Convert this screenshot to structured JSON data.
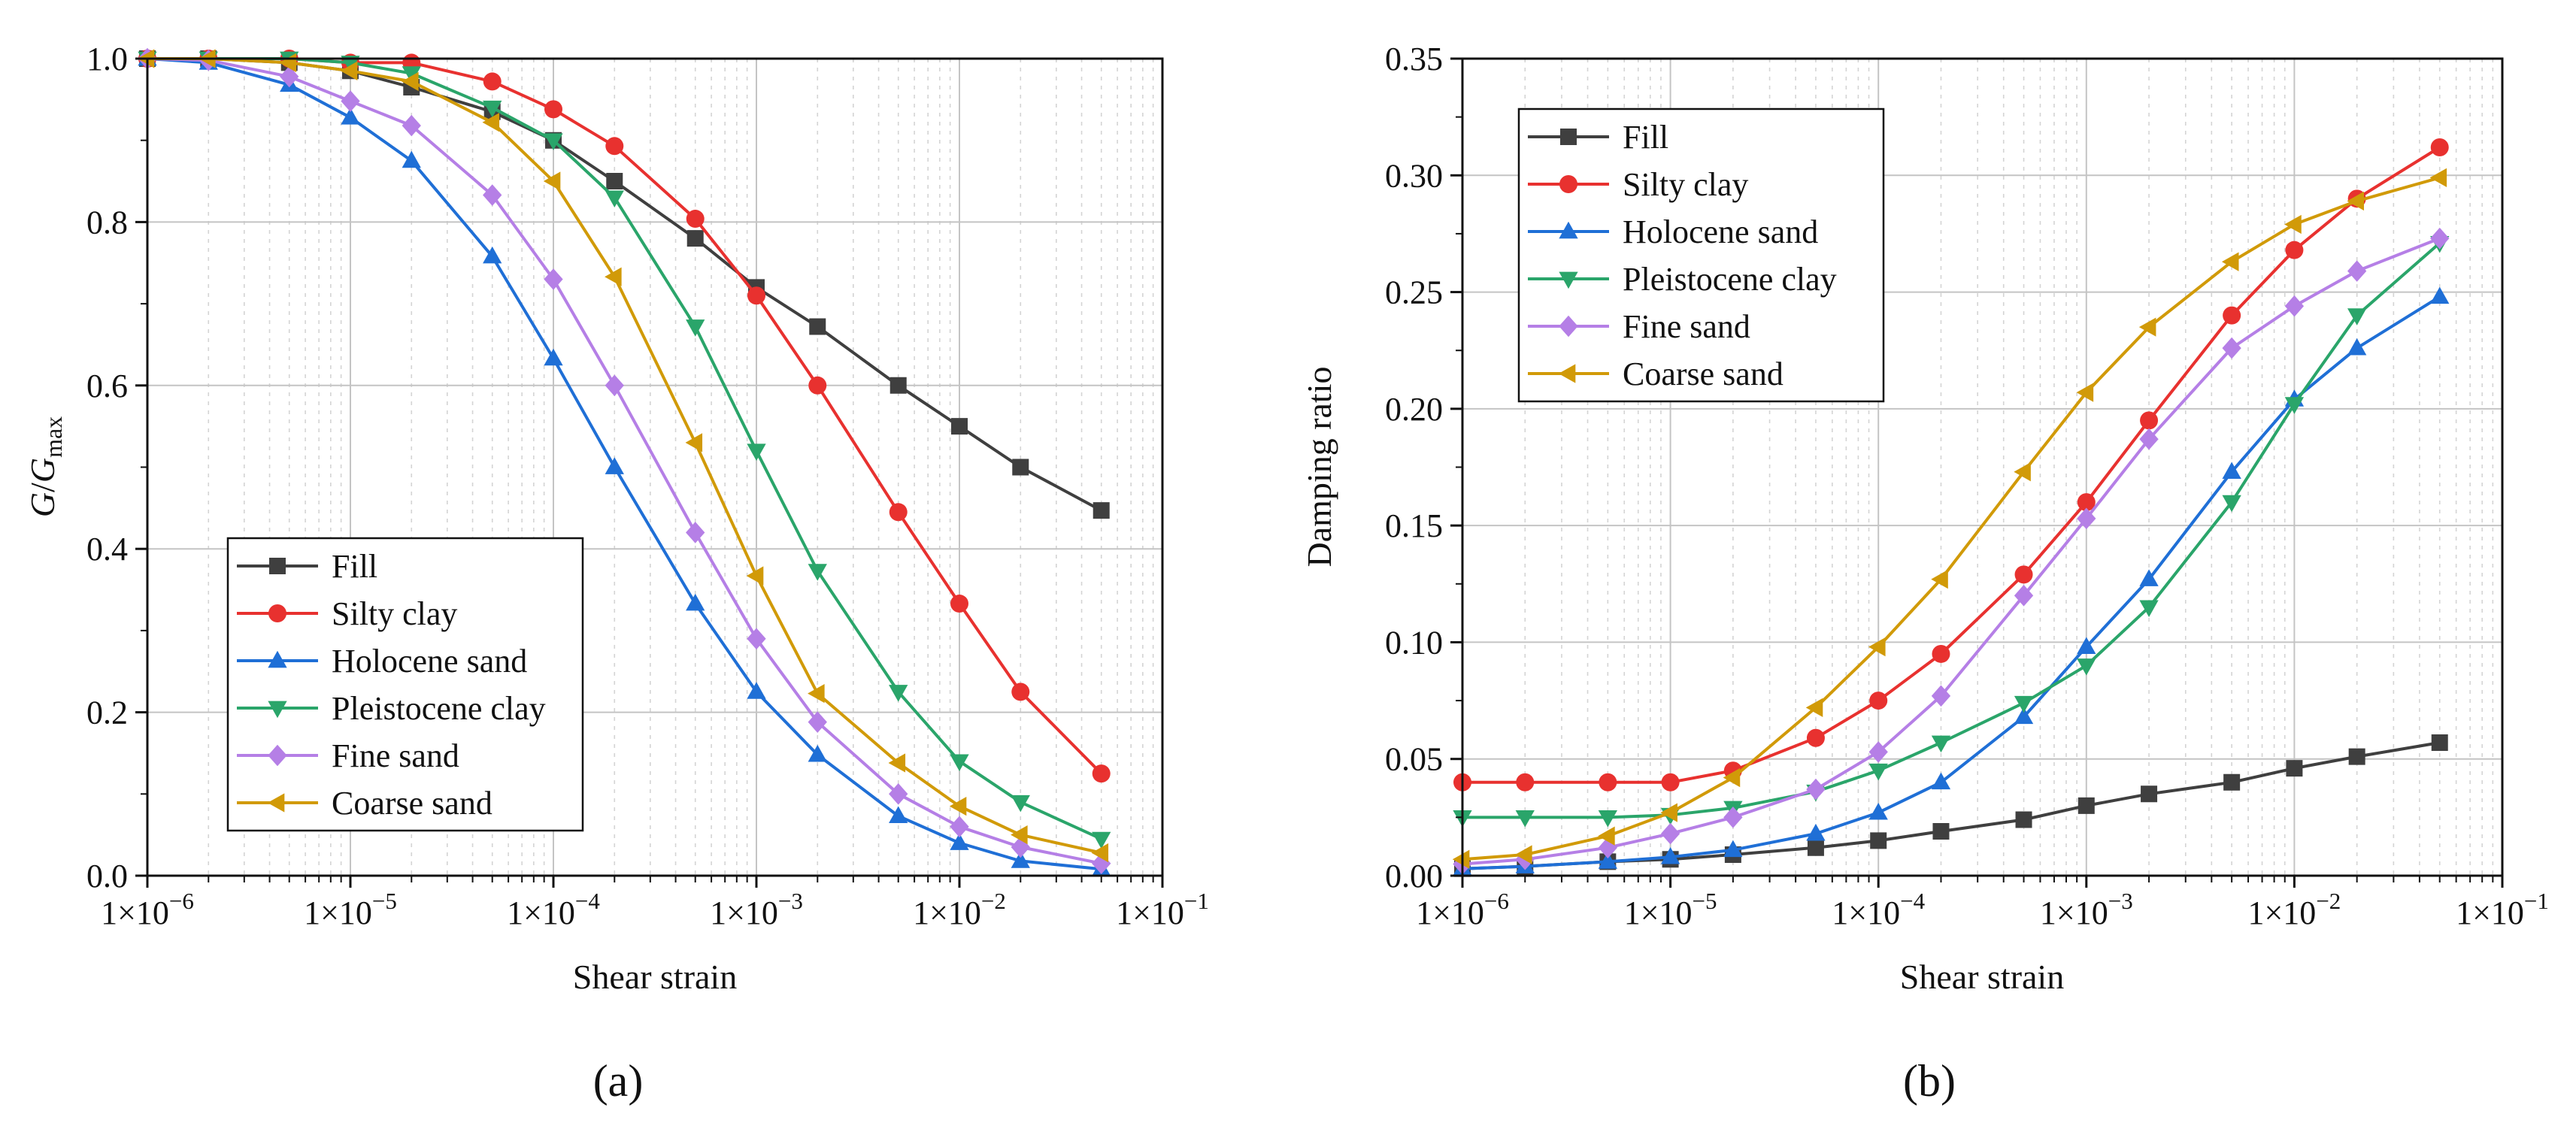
{
  "chart_data": [
    {
      "panel_label": "(a)",
      "type": "line",
      "x_scale": "log",
      "xlabel": "Shear strain",
      "ylabel": {
        "main": "G",
        "slash": "/",
        "denominator": "G",
        "subscript": "max"
      },
      "xlim": [
        1e-06,
        0.1
      ],
      "ylim": [
        0.0,
        1.0
      ],
      "x_ticks": [
        {
          "value": 1e-06,
          "base": "1×10",
          "exp": "−6"
        },
        {
          "value": 1e-05,
          "base": "1×10",
          "exp": "−5"
        },
        {
          "value": 0.0001,
          "base": "1×10",
          "exp": "−4"
        },
        {
          "value": 0.001,
          "base": "1×10",
          "exp": "−3"
        },
        {
          "value": 0.01,
          "base": "1×10",
          "exp": "−2"
        },
        {
          "value": 0.1,
          "base": "1×10",
          "exp": "−1"
        }
      ],
      "y_ticks": [
        {
          "value": 0.0,
          "label": "0.0"
        },
        {
          "value": 0.2,
          "label": "0.2"
        },
        {
          "value": 0.4,
          "label": "0.4"
        },
        {
          "value": 0.6,
          "label": "0.6"
        },
        {
          "value": 0.8,
          "label": "0.8"
        },
        {
          "value": 1.0,
          "label": "1.0"
        }
      ],
      "legend_position": "bottom-left",
      "x": [
        1e-06,
        2e-06,
        5e-06,
        1e-05,
        2e-05,
        5e-05,
        0.0001,
        0.0002,
        0.0005,
        0.001,
        0.002,
        0.005,
        0.01,
        0.02,
        0.05
      ],
      "series": [
        {
          "name": "Fill",
          "color": "#3f3f3f",
          "marker": "square",
          "values": [
            1.0,
            1.0,
            0.995,
            0.985,
            0.965,
            0.935,
            0.9,
            0.85,
            0.78,
            0.72,
            0.672,
            0.6,
            0.55,
            0.5,
            0.447
          ]
        },
        {
          "name": "Silty clay",
          "color": "#e8312f",
          "marker": "circle",
          "values": [
            1.0,
            1.0,
            1.0,
            0.995,
            0.995,
            0.972,
            0.938,
            0.893,
            0.804,
            0.71,
            0.6,
            0.445,
            0.333,
            0.225,
            0.125
          ]
        },
        {
          "name": "Holocene sand",
          "color": "#1f6fd6",
          "marker": "triangle-up",
          "values": [
            1.0,
            0.995,
            0.968,
            0.928,
            0.875,
            0.758,
            0.633,
            0.5,
            0.333,
            0.225,
            0.148,
            0.073,
            0.04,
            0.018,
            0.008
          ]
        },
        {
          "name": "Pleistocene clay",
          "color": "#2aa56a",
          "marker": "triangle-down",
          "values": [
            1.0,
            1.0,
            1.0,
            0.995,
            0.982,
            0.94,
            0.9,
            0.83,
            0.672,
            0.52,
            0.373,
            0.225,
            0.14,
            0.09,
            0.045
          ]
        },
        {
          "name": "Fine sand",
          "color": "#b57fe6",
          "marker": "diamond",
          "values": [
            1.0,
            0.998,
            0.978,
            0.948,
            0.918,
            0.833,
            0.73,
            0.6,
            0.42,
            0.29,
            0.188,
            0.1,
            0.06,
            0.035,
            0.015
          ]
        },
        {
          "name": "Coarse sand",
          "color": "#d19a08",
          "marker": "triangle-left",
          "values": [
            1.0,
            1.0,
            0.995,
            0.985,
            0.972,
            0.922,
            0.85,
            0.733,
            0.53,
            0.367,
            0.223,
            0.138,
            0.085,
            0.05,
            0.028
          ]
        }
      ]
    },
    {
      "panel_label": "(b)",
      "type": "line",
      "x_scale": "log",
      "xlabel": "Shear strain",
      "ylabel": {
        "main": "Damping ratio"
      },
      "xlim": [
        1e-06,
        0.1
      ],
      "ylim": [
        0.0,
        0.35
      ],
      "x_ticks": [
        {
          "value": 1e-06,
          "base": "1×10",
          "exp": "−6"
        },
        {
          "value": 1e-05,
          "base": "1×10",
          "exp": "−5"
        },
        {
          "value": 0.0001,
          "base": "1×10",
          "exp": "−4"
        },
        {
          "value": 0.001,
          "base": "1×10",
          "exp": "−3"
        },
        {
          "value": 0.01,
          "base": "1×10",
          "exp": "−2"
        },
        {
          "value": 0.1,
          "base": "1×10",
          "exp": "−1"
        }
      ],
      "y_ticks": [
        {
          "value": 0.0,
          "label": "0.00"
        },
        {
          "value": 0.05,
          "label": "0.05"
        },
        {
          "value": 0.1,
          "label": "0.10"
        },
        {
          "value": 0.15,
          "label": "0.15"
        },
        {
          "value": 0.2,
          "label": "0.20"
        },
        {
          "value": 0.25,
          "label": "0.25"
        },
        {
          "value": 0.3,
          "label": "0.30"
        },
        {
          "value": 0.35,
          "label": "0.35"
        }
      ],
      "legend_position": "top-left",
      "x": [
        1e-06,
        2e-06,
        5e-06,
        1e-05,
        2e-05,
        5e-05,
        0.0001,
        0.0002,
        0.0005,
        0.001,
        0.002,
        0.005,
        0.01,
        0.02,
        0.05
      ],
      "series": [
        {
          "name": "Fill",
          "color": "#3f3f3f",
          "marker": "square",
          "values": [
            0.003,
            0.004,
            0.006,
            0.007,
            0.009,
            0.012,
            0.015,
            0.019,
            0.024,
            0.03,
            0.035,
            0.04,
            0.046,
            0.051,
            0.057
          ]
        },
        {
          "name": "Silty clay",
          "color": "#e8312f",
          "marker": "circle",
          "values": [
            0.04,
            0.04,
            0.04,
            0.04,
            0.045,
            0.059,
            0.075,
            0.095,
            0.129,
            0.16,
            0.195,
            0.24,
            0.268,
            0.29,
            0.312
          ]
        },
        {
          "name": "Holocene sand",
          "color": "#1f6fd6",
          "marker": "triangle-up",
          "values": [
            0.003,
            0.004,
            0.006,
            0.008,
            0.011,
            0.018,
            0.027,
            0.04,
            0.068,
            0.098,
            0.127,
            0.173,
            0.204,
            0.226,
            0.248
          ]
        },
        {
          "name": "Pleistocene clay",
          "color": "#2aa56a",
          "marker": "triangle-down",
          "values": [
            0.025,
            0.025,
            0.025,
            0.026,
            0.029,
            0.036,
            0.045,
            0.057,
            0.074,
            0.09,
            0.115,
            0.16,
            0.202,
            0.24,
            0.271
          ]
        },
        {
          "name": "Fine sand",
          "color": "#b57fe6",
          "marker": "diamond",
          "values": [
            0.005,
            0.007,
            0.012,
            0.018,
            0.025,
            0.037,
            0.053,
            0.077,
            0.12,
            0.153,
            0.187,
            0.226,
            0.244,
            0.259,
            0.273
          ]
        },
        {
          "name": "Coarse sand",
          "color": "#d19a08",
          "marker": "triangle-left",
          "values": [
            0.007,
            0.009,
            0.017,
            0.027,
            0.042,
            0.072,
            0.098,
            0.127,
            0.173,
            0.207,
            0.235,
            0.263,
            0.279,
            0.289,
            0.299
          ]
        }
      ]
    }
  ]
}
